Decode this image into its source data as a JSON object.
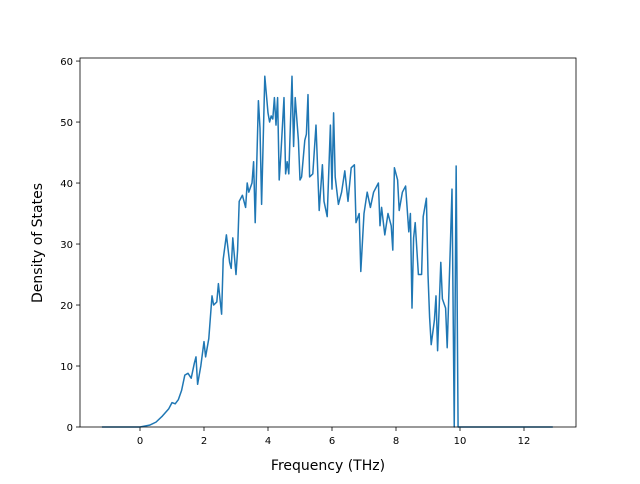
{
  "chart_data": {
    "type": "line",
    "xlabel": "Frequency (THz)",
    "ylabel": "Density of States",
    "xlim": [
      -1.875,
      13.625
    ],
    "ylim": [
      0,
      60.5
    ],
    "xticks": [
      0,
      2,
      4,
      6,
      8,
      10,
      12
    ],
    "yticks": [
      0,
      10,
      20,
      30,
      40,
      50,
      60
    ],
    "series": [
      {
        "color": "#1f77b4",
        "x": [
          -1.19,
          0,
          0.3,
          0.5,
          0.7,
          0.9,
          1.0,
          1.1,
          1.2,
          1.3,
          1.4,
          1.5,
          1.6,
          1.7,
          1.75,
          1.8,
          1.9,
          2.0,
          2.05,
          2.15,
          2.25,
          2.3,
          2.4,
          2.45,
          2.55,
          2.6,
          2.7,
          2.8,
          2.85,
          2.9,
          3.0,
          3.05,
          3.1,
          3.2,
          3.3,
          3.35,
          3.4,
          3.5,
          3.55,
          3.6,
          3.7,
          3.75,
          3.8,
          3.9,
          4.0,
          4.05,
          4.1,
          4.15,
          4.2,
          4.25,
          4.3,
          4.35,
          4.4,
          4.5,
          4.55,
          4.6,
          4.65,
          4.75,
          4.8,
          4.85,
          4.95,
          5.0,
          5.05,
          5.15,
          5.2,
          5.25,
          5.3,
          5.4,
          5.5,
          5.6,
          5.7,
          5.75,
          5.85,
          5.95,
          6.0,
          6.05,
          6.1,
          6.2,
          6.3,
          6.4,
          6.5,
          6.6,
          6.7,
          6.75,
          6.85,
          6.9,
          7.0,
          7.1,
          7.2,
          7.3,
          7.45,
          7.5,
          7.55,
          7.65,
          7.75,
          7.85,
          7.9,
          7.95,
          8.05,
          8.1,
          8.2,
          8.3,
          8.4,
          8.45,
          8.5,
          8.55,
          8.6,
          8.7,
          8.8,
          8.85,
          8.95,
          9.0,
          9.05,
          9.1,
          9.2,
          9.25,
          9.3,
          9.4,
          9.45,
          9.55,
          9.6,
          9.7,
          9.75,
          9.82,
          9.88,
          9.94,
          10.5,
          12.9
        ],
        "values": [
          0,
          0,
          0.3,
          0.8,
          1.8,
          3,
          4,
          3.8,
          4.5,
          6,
          8.5,
          8.8,
          8,
          10.5,
          11.5,
          7,
          10,
          14,
          11.5,
          14.5,
          21.5,
          20,
          20.5,
          23.5,
          18.5,
          27.5,
          31.5,
          27,
          26,
          31,
          25,
          29,
          37,
          38,
          36,
          40,
          38.5,
          40,
          43.5,
          33.5,
          53.5,
          49,
          36.5,
          57.5,
          51.5,
          50,
          51,
          50.5,
          54,
          49.5,
          54,
          40.5,
          44.5,
          54,
          41.5,
          43.5,
          41.5,
          57.5,
          46,
          54,
          47,
          40.5,
          41,
          47,
          48,
          54.5,
          41,
          41.5,
          49.5,
          35.5,
          43,
          37,
          34.5,
          49.5,
          39,
          51.5,
          41,
          36.5,
          38.5,
          42,
          37,
          42.5,
          43,
          33.5,
          35,
          25.5,
          35,
          38.5,
          36,
          38.5,
          40,
          33,
          36,
          31.5,
          35,
          33,
          29,
          42.5,
          40.5,
          35.5,
          38.5,
          39.5,
          32,
          35,
          19.5,
          31,
          33.5,
          25,
          25,
          34.5,
          37.5,
          25,
          18,
          13.5,
          17.5,
          21.5,
          12.5,
          27,
          21,
          19.5,
          13,
          30,
          39,
          0,
          42.8,
          0,
          0,
          0
        ]
      }
    ]
  }
}
